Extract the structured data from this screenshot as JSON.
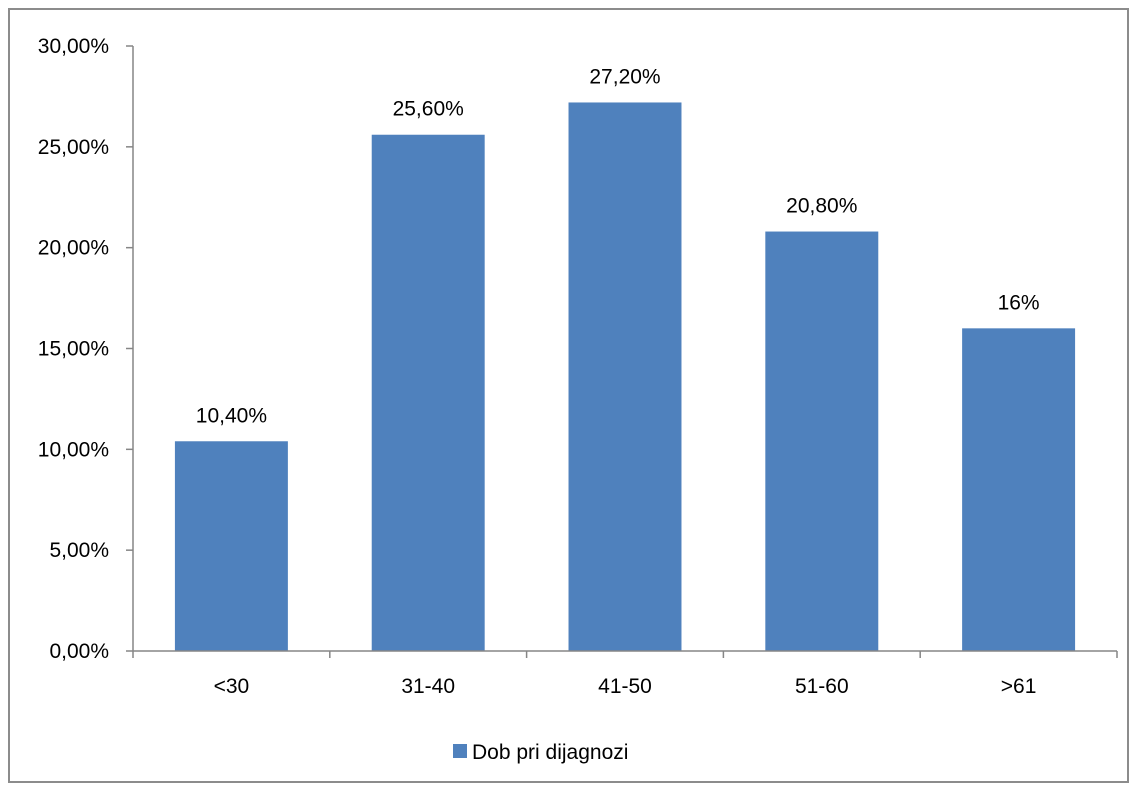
{
  "chart_data": {
    "type": "bar",
    "categories": [
      "<30",
      "31-40",
      "41-50",
      "51-60",
      ">61"
    ],
    "series": [
      {
        "name": "Dob pri dijagnozi",
        "values": [
          10.4,
          25.6,
          27.2,
          20.8,
          16.0
        ],
        "data_labels": [
          "10,40%",
          "25,60%",
          "27,20%",
          "20,80%",
          "16%"
        ],
        "color": "#4F81BD"
      }
    ],
    "ylim": [
      0,
      30
    ],
    "yticks": [
      0,
      5,
      10,
      15,
      20,
      25,
      30
    ],
    "ytick_labels": [
      "0,00%",
      "5,00%",
      "10,00%",
      "15,00%",
      "20,00%",
      "25,00%",
      "30,00%"
    ],
    "legend": {
      "position": "bottom",
      "label": "Dob pri dijagnozi"
    },
    "grid": false,
    "axis_color": "#868686"
  }
}
